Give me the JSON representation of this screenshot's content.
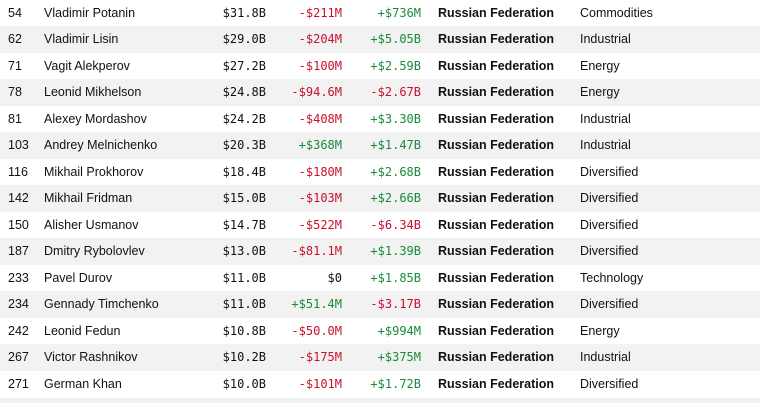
{
  "rows": [
    {
      "rank": "54",
      "name": "Vladimir Potanin",
      "worth": "$31.8B",
      "day": "-$211M",
      "ytd": "+$736M",
      "country": "Russian Federation",
      "industry": "Commodities"
    },
    {
      "rank": "62",
      "name": "Vladimir Lisin",
      "worth": "$29.0B",
      "day": "-$204M",
      "ytd": "+$5.05B",
      "country": "Russian Federation",
      "industry": "Industrial"
    },
    {
      "rank": "71",
      "name": "Vagit Alekperov",
      "worth": "$27.2B",
      "day": "-$100M",
      "ytd": "+$2.59B",
      "country": "Russian Federation",
      "industry": "Energy"
    },
    {
      "rank": "78",
      "name": "Leonid Mikhelson",
      "worth": "$24.8B",
      "day": "-$94.6M",
      "ytd": "-$2.67B",
      "country": "Russian Federation",
      "industry": "Energy"
    },
    {
      "rank": "81",
      "name": "Alexey Mordashov",
      "worth": "$24.2B",
      "day": "-$408M",
      "ytd": "+$3.30B",
      "country": "Russian Federation",
      "industry": "Industrial"
    },
    {
      "rank": "103",
      "name": "Andrey Melnichenko",
      "worth": "$20.3B",
      "day": "+$368M",
      "ytd": "+$1.47B",
      "country": "Russian Federation",
      "industry": "Industrial"
    },
    {
      "rank": "116",
      "name": "Mikhail Prokhorov",
      "worth": "$18.4B",
      "day": "-$180M",
      "ytd": "+$2.68B",
      "country": "Russian Federation",
      "industry": "Diversified"
    },
    {
      "rank": "142",
      "name": "Mikhail Fridman",
      "worth": "$15.0B",
      "day": "-$103M",
      "ytd": "+$2.66B",
      "country": "Russian Federation",
      "industry": "Diversified"
    },
    {
      "rank": "150",
      "name": "Alisher Usmanov",
      "worth": "$14.7B",
      "day": "-$522M",
      "ytd": "-$6.34B",
      "country": "Russian Federation",
      "industry": "Diversified"
    },
    {
      "rank": "187",
      "name": "Dmitry Rybolovlev",
      "worth": "$13.0B",
      "day": "-$81.1M",
      "ytd": "+$1.39B",
      "country": "Russian Federation",
      "industry": "Diversified"
    },
    {
      "rank": "233",
      "name": "Pavel Durov",
      "worth": "$11.0B",
      "day": "$0",
      "ytd": "+$1.85B",
      "country": "Russian Federation",
      "industry": "Technology"
    },
    {
      "rank": "234",
      "name": "Gennady Timchenko",
      "worth": "$11.0B",
      "day": "+$51.4M",
      "ytd": "-$3.17B",
      "country": "Russian Federation",
      "industry": "Diversified"
    },
    {
      "rank": "242",
      "name": "Leonid Fedun",
      "worth": "$10.8B",
      "day": "-$50.0M",
      "ytd": "+$994M",
      "country": "Russian Federation",
      "industry": "Energy"
    },
    {
      "rank": "267",
      "name": "Victor Rashnikov",
      "worth": "$10.2B",
      "day": "-$175M",
      "ytd": "+$375M",
      "country": "Russian Federation",
      "industry": "Industrial"
    },
    {
      "rank": "271",
      "name": "German Khan",
      "worth": "$10.0B",
      "day": "-$101M",
      "ytd": "+$1.72B",
      "country": "Russian Federation",
      "industry": "Diversified"
    }
  ],
  "colors": {
    "negative": "#c8102e",
    "positive": "#1a8a3a",
    "row_alt_background": "#f2f2f2"
  }
}
